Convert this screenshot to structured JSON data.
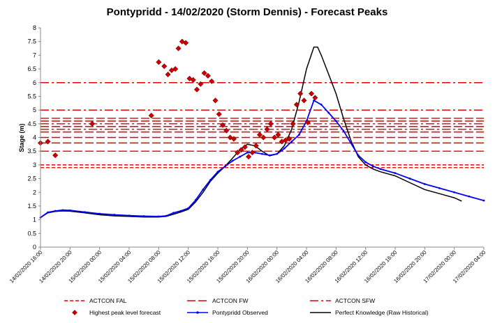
{
  "chart_data": {
    "type": "line",
    "title": "Pontypridd - 14/02/2020 (Storm Dennis) - Forecast Peaks",
    "ylabel": "Stage (m)",
    "xlabel": "",
    "ylim": [
      0,
      8
    ],
    "yticks": [
      "0",
      "0.5",
      "1",
      "1.5",
      "2",
      "2.5",
      "3",
      "3.5",
      "4",
      "4.5",
      "5",
      "5.5",
      "6",
      "6.5",
      "7",
      "7.5",
      "8"
    ],
    "xlim": [
      "14/02/2020 16:00",
      "17/02/2020 04:00"
    ],
    "xticks": [
      "14/02/2020 16:00",
      "14/02/2020 20:00",
      "15/02/2020 00:00",
      "15/02/2020 04:00",
      "15/02/2020 08:00",
      "15/02/2020 12:00",
      "15/02/2020 16:00",
      "15/02/2020 20:00",
      "16/02/2020 00:00",
      "16/02/2020 04:00",
      "16/02/2020 08:00",
      "16/02/2020 12:00",
      "16/02/2020 16:00",
      "16/02/2020 20:00",
      "17/02/2020 00:00",
      "17/02/2020 04:00"
    ],
    "grid": false,
    "legend_position": "bottom",
    "thresholds": [
      {
        "name": "ACTCON FAL",
        "style": "dash",
        "values": [
          2.9,
          3.0
        ]
      },
      {
        "name": "ACTCON FW",
        "style": "longdash",
        "values": [
          3.5,
          3.8,
          4.0,
          4.2,
          4.4,
          4.6,
          4.7
        ]
      },
      {
        "name": "ACTCON SFW",
        "style": "dashdot",
        "values": [
          4.3,
          4.5,
          5.0,
          6.0
        ]
      }
    ],
    "series": [
      {
        "name": "Highest peak level forecast",
        "kind": "scatter",
        "color": "#cc0000",
        "points": [
          [
            "14/02/2020 16:00",
            3.8
          ],
          [
            "14/02/2020 17:00",
            3.85
          ],
          [
            "14/02/2020 18:00",
            3.35
          ],
          [
            "14/02/2020 23:00",
            4.5
          ],
          [
            "15/02/2020 07:00",
            4.8
          ],
          [
            "15/02/2020 08:00",
            6.75
          ],
          [
            "15/02/2020 08:45",
            6.6
          ],
          [
            "15/02/2020 09:15",
            6.3
          ],
          [
            "15/02/2020 09:45",
            6.45
          ],
          [
            "15/02/2020 10:15",
            6.5
          ],
          [
            "15/02/2020 10:40",
            7.25
          ],
          [
            "15/02/2020 11:10",
            7.5
          ],
          [
            "15/02/2020 11:40",
            7.45
          ],
          [
            "15/02/2020 12:10",
            6.15
          ],
          [
            "15/02/2020 12:40",
            6.1
          ],
          [
            "15/02/2020 13:10",
            5.75
          ],
          [
            "15/02/2020 13:40",
            5.95
          ],
          [
            "15/02/2020 14:10",
            6.35
          ],
          [
            "15/02/2020 14:40",
            6.25
          ],
          [
            "15/02/2020 15:10",
            6.05
          ],
          [
            "15/02/2020 15:40",
            5.35
          ],
          [
            "15/02/2020 16:10",
            4.85
          ],
          [
            "15/02/2020 16:40",
            4.45
          ],
          [
            "15/02/2020 17:10",
            4.25
          ],
          [
            "15/02/2020 17:40",
            4.0
          ],
          [
            "15/02/2020 18:10",
            3.95
          ],
          [
            "15/02/2020 18:40",
            3.45
          ],
          [
            "15/02/2020 19:10",
            3.55
          ],
          [
            "15/02/2020 19:40",
            3.65
          ],
          [
            "15/02/2020 20:10",
            3.3
          ],
          [
            "15/02/2020 20:40",
            3.45
          ],
          [
            "15/02/2020 21:10",
            3.7
          ],
          [
            "15/02/2020 21:40",
            4.1
          ],
          [
            "15/02/2020 22:10",
            4.0
          ],
          [
            "15/02/2020 22:40",
            4.3
          ],
          [
            "15/02/2020 23:10",
            4.5
          ],
          [
            "15/02/2020 23:40",
            4.0
          ],
          [
            "16/02/2020 00:10",
            4.1
          ],
          [
            "16/02/2020 00:40",
            3.85
          ],
          [
            "16/02/2020 01:10",
            3.9
          ],
          [
            "16/02/2020 01:40",
            3.95
          ],
          [
            "16/02/2020 02:10",
            4.5
          ],
          [
            "16/02/2020 02:40",
            5.2
          ],
          [
            "16/02/2020 03:10",
            5.6
          ],
          [
            "16/02/2020 03:40",
            5.35
          ],
          [
            "16/02/2020 04:10",
            4.55
          ],
          [
            "16/02/2020 04:40",
            5.6
          ],
          [
            "16/02/2020 05:10",
            5.45
          ]
        ]
      },
      {
        "name": "Pontypridd Observed",
        "kind": "line",
        "color": "#0000ff",
        "points": [
          [
            "14/02/2020 16:00",
            1.08
          ],
          [
            "14/02/2020 17:00",
            1.27
          ],
          [
            "14/02/2020 18:00",
            1.32
          ],
          [
            "14/02/2020 19:00",
            1.35
          ],
          [
            "14/02/2020 20:00",
            1.34
          ],
          [
            "14/02/2020 22:00",
            1.28
          ],
          [
            "15/02/2020 00:00",
            1.22
          ],
          [
            "15/02/2020 02:00",
            1.18
          ],
          [
            "15/02/2020 04:00",
            1.15
          ],
          [
            "15/02/2020 06:00",
            1.13
          ],
          [
            "15/02/2020 08:00",
            1.12
          ],
          [
            "15/02/2020 09:00",
            1.14
          ],
          [
            "15/02/2020 10:00",
            1.25
          ],
          [
            "15/02/2020 11:00",
            1.32
          ],
          [
            "15/02/2020 12:00",
            1.42
          ],
          [
            "15/02/2020 13:00",
            1.72
          ],
          [
            "15/02/2020 14:00",
            2.1
          ],
          [
            "15/02/2020 15:00",
            2.45
          ],
          [
            "15/02/2020 16:00",
            2.75
          ],
          [
            "15/02/2020 17:00",
            2.95
          ],
          [
            "15/02/2020 18:00",
            3.15
          ],
          [
            "15/02/2020 19:00",
            3.3
          ],
          [
            "15/02/2020 20:00",
            3.45
          ],
          [
            "15/02/2020 21:00",
            3.45
          ],
          [
            "15/02/2020 22:00",
            3.4
          ],
          [
            "15/02/2020 23:00",
            3.35
          ],
          [
            "16/02/2020 00:00",
            3.4
          ],
          [
            "16/02/2020 01:00",
            3.6
          ],
          [
            "16/02/2020 02:00",
            3.85
          ],
          [
            "16/02/2020 03:00",
            4.1
          ],
          [
            "16/02/2020 04:00",
            4.6
          ],
          [
            "16/02/2020 05:00",
            5.35
          ],
          [
            "16/02/2020 06:00",
            5.2
          ],
          [
            "16/02/2020 07:00",
            4.9
          ],
          [
            "16/02/2020 08:00",
            4.6
          ],
          [
            "16/02/2020 09:00",
            4.25
          ],
          [
            "16/02/2020 10:00",
            3.8
          ],
          [
            "16/02/2020 11:00",
            3.35
          ],
          [
            "16/02/2020 12:00",
            3.1
          ],
          [
            "16/02/2020 13:00",
            2.95
          ],
          [
            "16/02/2020 14:00",
            2.85
          ],
          [
            "16/02/2020 16:00",
            2.7
          ],
          [
            "16/02/2020 18:00",
            2.5
          ],
          [
            "16/02/2020 20:00",
            2.3
          ],
          [
            "16/02/2020 22:00",
            2.15
          ],
          [
            "17/02/2020 00:00",
            2.0
          ],
          [
            "17/02/2020 02:00",
            1.85
          ],
          [
            "17/02/2020 04:00",
            1.7
          ]
        ]
      },
      {
        "name": "Perfect Knowledge (Raw Historical)",
        "kind": "line",
        "color": "#000000",
        "points": [
          [
            "14/02/2020 16:00",
            1.08
          ],
          [
            "14/02/2020 17:00",
            1.25
          ],
          [
            "14/02/2020 18:00",
            1.3
          ],
          [
            "14/02/2020 19:00",
            1.32
          ],
          [
            "14/02/2020 20:00",
            1.31
          ],
          [
            "14/02/2020 22:00",
            1.25
          ],
          [
            "15/02/2020 00:00",
            1.18
          ],
          [
            "15/02/2020 02:00",
            1.14
          ],
          [
            "15/02/2020 04:00",
            1.12
          ],
          [
            "15/02/2020 06:00",
            1.1
          ],
          [
            "15/02/2020 08:00",
            1.1
          ],
          [
            "15/02/2020 09:00",
            1.12
          ],
          [
            "15/02/2020 10:00",
            1.2
          ],
          [
            "15/02/2020 11:00",
            1.28
          ],
          [
            "15/02/2020 12:00",
            1.38
          ],
          [
            "15/02/2020 13:00",
            1.65
          ],
          [
            "15/02/2020 14:00",
            2.0
          ],
          [
            "15/02/2020 15:00",
            2.4
          ],
          [
            "15/02/2020 16:00",
            2.7
          ],
          [
            "15/02/2020 17:00",
            2.95
          ],
          [
            "15/02/2020 18:00",
            3.25
          ],
          [
            "15/02/2020 19:00",
            3.55
          ],
          [
            "15/02/2020 20:00",
            3.75
          ],
          [
            "15/02/2020 21:00",
            3.7
          ],
          [
            "15/02/2020 22:00",
            3.5
          ],
          [
            "15/02/2020 23:00",
            3.33
          ],
          [
            "16/02/2020 00:00",
            3.4
          ],
          [
            "16/02/2020 01:00",
            3.7
          ],
          [
            "16/02/2020 02:00",
            4.3
          ],
          [
            "16/02/2020 03:00",
            5.3
          ],
          [
            "16/02/2020 04:00",
            6.5
          ],
          [
            "16/02/2020 05:00",
            7.3
          ],
          [
            "16/02/2020 05:30",
            7.3
          ],
          [
            "16/02/2020 06:00",
            7.0
          ],
          [
            "16/02/2020 07:00",
            6.3
          ],
          [
            "16/02/2020 08:00",
            5.6
          ],
          [
            "16/02/2020 09:00",
            4.7
          ],
          [
            "16/02/2020 10:00",
            3.9
          ],
          [
            "16/02/2020 11:00",
            3.3
          ],
          [
            "16/02/2020 12:00",
            3.0
          ],
          [
            "16/02/2020 13:00",
            2.85
          ],
          [
            "16/02/2020 14:00",
            2.75
          ],
          [
            "16/02/2020 16:00",
            2.6
          ],
          [
            "16/02/2020 18:00",
            2.35
          ],
          [
            "16/02/2020 20:00",
            2.1
          ],
          [
            "16/02/2020 22:00",
            1.95
          ],
          [
            "17/02/2020 00:00",
            1.8
          ],
          [
            "17/02/2020 01:00",
            1.68
          ]
        ]
      }
    ]
  }
}
